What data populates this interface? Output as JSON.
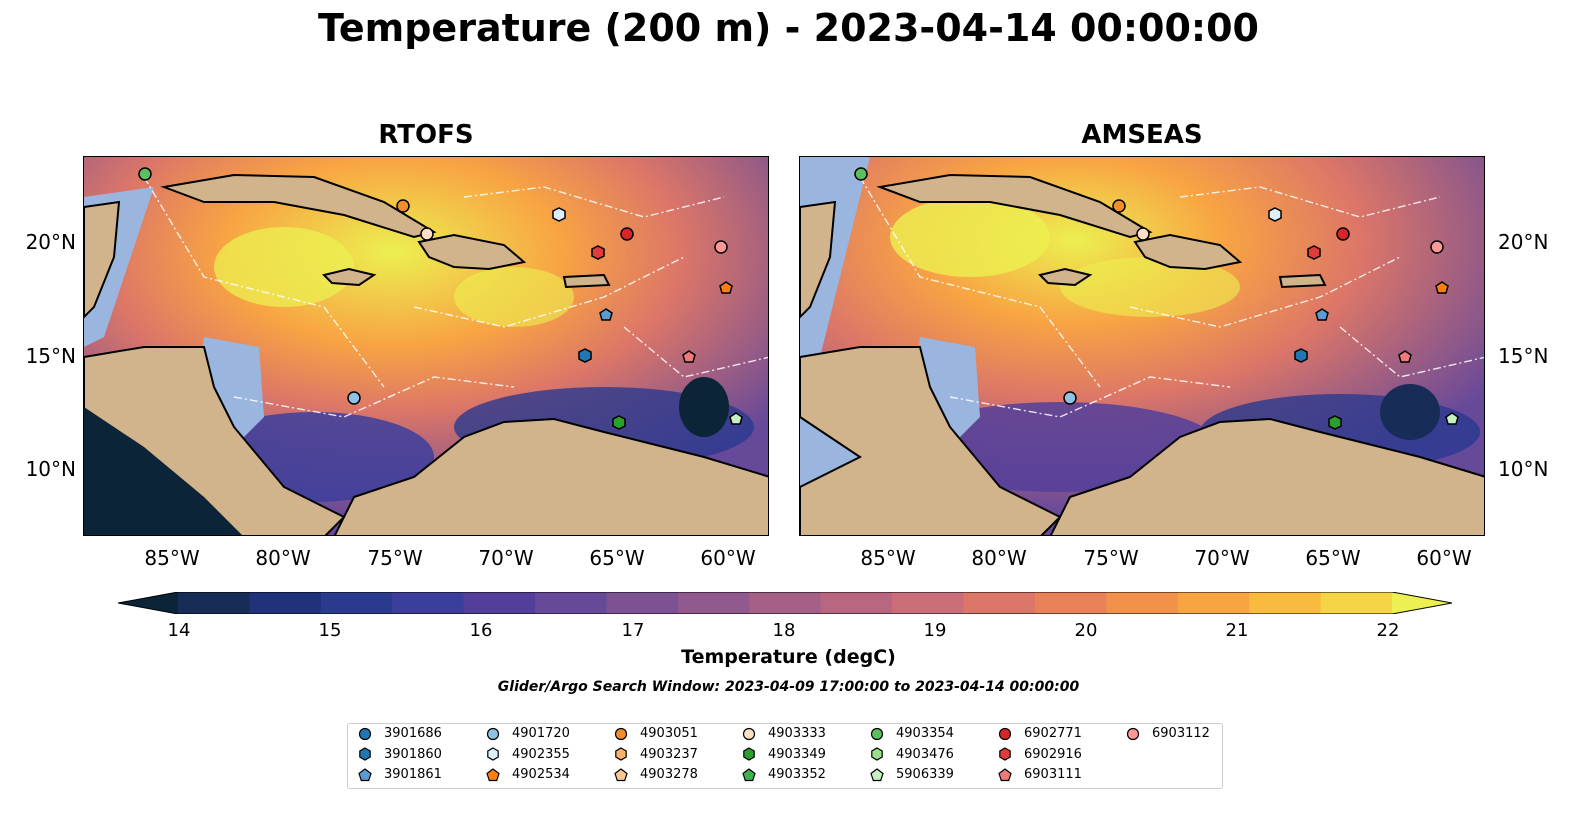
{
  "title": "Temperature (200 m) - 2023-04-14 00:00:00",
  "panels": [
    {
      "title": "RTOFS"
    },
    {
      "title": "AMSEAS"
    }
  ],
  "lon_ticks": [
    "85°W",
    "80°W",
    "75°W",
    "70°W",
    "65°W",
    "60°W"
  ],
  "lat_ticks": [
    "20°N",
    "15°N",
    "10°N"
  ],
  "colorbar": {
    "label": "Temperature (degC)",
    "ticks": [
      "14",
      "15",
      "16",
      "17",
      "18",
      "19",
      "20",
      "21",
      "22"
    ],
    "range": [
      14,
      22
    ],
    "extend": "both",
    "colors": [
      "#0b2437",
      "#172c56",
      "#1f327a",
      "#2a3a8f",
      "#3c3e9c",
      "#533f9b",
      "#67499a",
      "#7c5293",
      "#91598d",
      "#a56088",
      "#b96681",
      "#cc6e77",
      "#dc7668",
      "#e98158",
      "#f2914a",
      "#f8a443",
      "#f9ba40",
      "#f5d447",
      "#ecf050"
    ]
  },
  "search_window": "Glider/Argo Search Window: 2023-04-09 17:00:00 to 2023-04-14 00:00:00",
  "legend": [
    {
      "id": "3901686",
      "marker": "circle",
      "color": "#1f77b4"
    },
    {
      "id": "3901860",
      "marker": "hexagon",
      "color": "#1f77b4"
    },
    {
      "id": "3901861",
      "marker": "pentagon",
      "color": "#5b9bd5"
    },
    {
      "id": "4901720",
      "marker": "circle",
      "color": "#8fc1e3"
    },
    {
      "id": "4902355",
      "marker": "hexagon",
      "color": "#dbeefa"
    },
    {
      "id": "4902534",
      "marker": "pentagon",
      "color": "#ff7f0e"
    },
    {
      "id": "4903051",
      "marker": "circle",
      "color": "#f28e2b"
    },
    {
      "id": "4903237",
      "marker": "hexagon",
      "color": "#f9b26b"
    },
    {
      "id": "4903278",
      "marker": "pentagon",
      "color": "#fdc691"
    },
    {
      "id": "4903333",
      "marker": "circle",
      "color": "#fde0c5"
    },
    {
      "id": "4903349",
      "marker": "hexagon",
      "color": "#2ca02c"
    },
    {
      "id": "4903352",
      "marker": "pentagon",
      "color": "#3cb44b"
    },
    {
      "id": "4903354",
      "marker": "circle",
      "color": "#5dbe5d"
    },
    {
      "id": "4903476",
      "marker": "hexagon",
      "color": "#98df8a"
    },
    {
      "id": "5906339",
      "marker": "pentagon",
      "color": "#c7f0c0"
    },
    {
      "id": "6902771",
      "marker": "circle",
      "color": "#d62728"
    },
    {
      "id": "6902916",
      "marker": "hexagon",
      "color": "#e03c3c"
    },
    {
      "id": "6903111",
      "marker": "pentagon",
      "color": "#f07a7a"
    },
    {
      "id": "6903112",
      "marker": "circle",
      "color": "#ff9896"
    }
  ],
  "colors": {
    "land": "#d2b48c",
    "shallow": "#9ab5de",
    "deep_ocean_left": "#0b2437"
  }
}
